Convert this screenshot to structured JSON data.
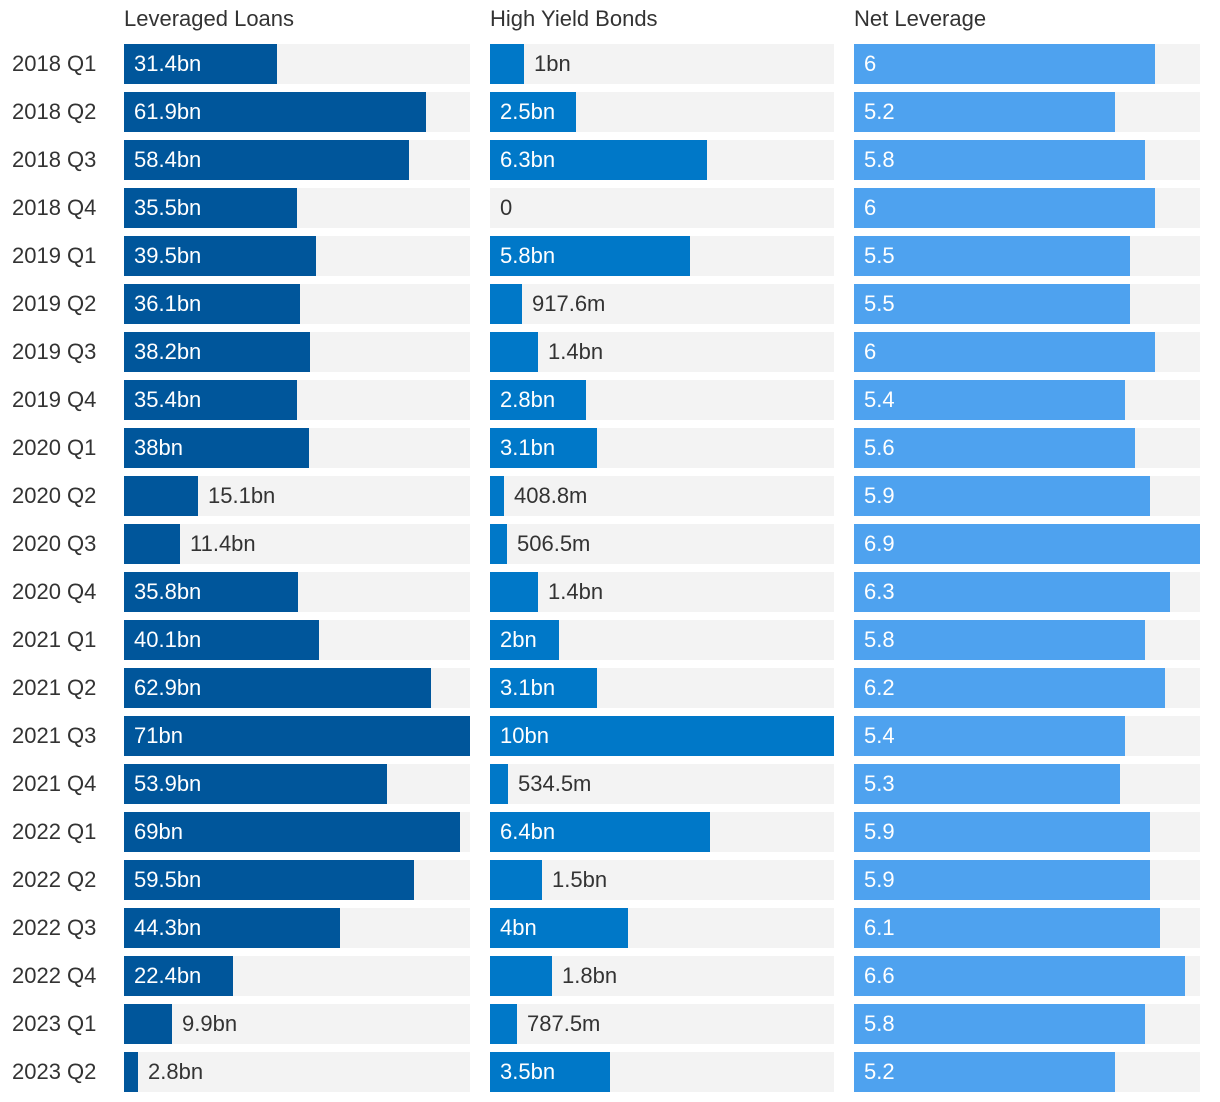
{
  "chart_data": {
    "type": "bar",
    "orientation": "horizontal",
    "categories": [
      "2018 Q1",
      "2018 Q2",
      "2018 Q3",
      "2018 Q4",
      "2019 Q1",
      "2019 Q2",
      "2019 Q3",
      "2019 Q4",
      "2020 Q1",
      "2020 Q2",
      "2020 Q3",
      "2020 Q4",
      "2021 Q1",
      "2021 Q2",
      "2021 Q3",
      "2021 Q4",
      "2022 Q1",
      "2022 Q2",
      "2022 Q3",
      "2022 Q4",
      "2023 Q1",
      "2023 Q2"
    ],
    "series": [
      {
        "name": "Leveraged Loans",
        "color": "#00569b",
        "max": 71,
        "values": [
          31.4,
          61.9,
          58.4,
          35.5,
          39.5,
          36.1,
          38.2,
          35.4,
          38,
          15.1,
          11.4,
          35.8,
          40.1,
          62.9,
          71,
          53.9,
          69,
          59.5,
          44.3,
          22.4,
          9.9,
          2.8
        ],
        "labels": [
          "31.4bn",
          "61.9bn",
          "58.4bn",
          "35.5bn",
          "39.5bn",
          "36.1bn",
          "38.2bn",
          "35.4bn",
          "38bn",
          "15.1bn",
          "11.4bn",
          "35.8bn",
          "40.1bn",
          "62.9bn",
          "71bn",
          "53.9bn",
          "69bn",
          "59.5bn",
          "44.3bn",
          "22.4bn",
          "9.9bn",
          "2.8bn"
        ]
      },
      {
        "name": "High Yield Bonds",
        "color": "#0078c8",
        "max": 10,
        "values": [
          1,
          2.5,
          6.3,
          0,
          5.8,
          0.9176,
          1.4,
          2.8,
          3.1,
          0.4088,
          0.5065,
          1.4,
          2,
          3.1,
          10,
          0.5345,
          6.4,
          1.5,
          4,
          1.8,
          0.7875,
          3.5
        ],
        "labels": [
          "1bn",
          "2.5bn",
          "6.3bn",
          "0",
          "5.8bn",
          "917.6m",
          "1.4bn",
          "2.8bn",
          "3.1bn",
          "408.8m",
          "506.5m",
          "1.4bn",
          "2bn",
          "3.1bn",
          "10bn",
          "534.5m",
          "6.4bn",
          "1.5bn",
          "4bn",
          "1.8bn",
          "787.5m",
          "3.5bn"
        ]
      },
      {
        "name": "Net Leverage",
        "color": "#4ea2ef",
        "max": 6.9,
        "values": [
          6,
          5.2,
          5.8,
          6,
          5.5,
          5.5,
          6,
          5.4,
          5.6,
          5.9,
          6.9,
          6.3,
          5.8,
          6.2,
          5.4,
          5.3,
          5.9,
          5.9,
          6.1,
          6.6,
          5.8,
          5.2
        ],
        "labels": [
          "6",
          "5.2",
          "5.8",
          "6",
          "5.5",
          "5.5",
          "6",
          "5.4",
          "5.6",
          "5.9",
          "6.9",
          "6.3",
          "5.8",
          "6.2",
          "5.4",
          "5.3",
          "5.9",
          "5.9",
          "6.1",
          "6.6",
          "5.8",
          "5.2"
        ]
      }
    ],
    "title": "",
    "xlabel": "",
    "ylabel": "",
    "grid": false,
    "legend": "none"
  }
}
